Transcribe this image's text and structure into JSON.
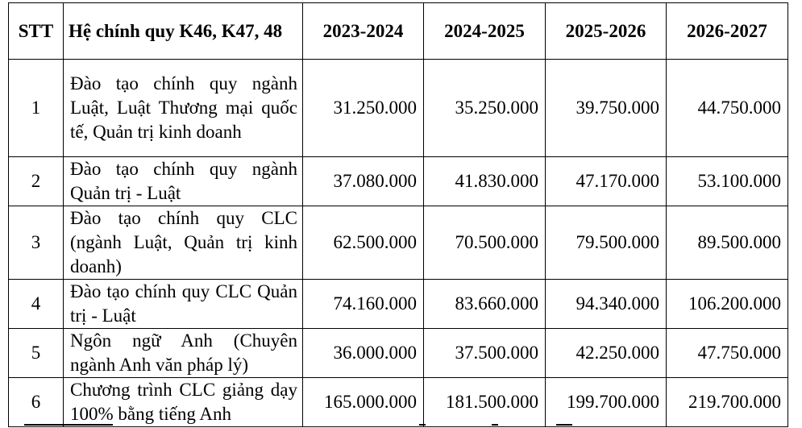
{
  "table": {
    "headers": {
      "stt": "STT",
      "program": "Hệ chính quy K46, K47, 48",
      "years": [
        "2023-2024",
        "2024-2025",
        "2025-2026",
        "2026-2027"
      ]
    },
    "rows": [
      {
        "stt": "1",
        "program": "Đào tạo chính quy ngành Luật, Luật Thương mại quốc tế, Quản trị kinh doanh",
        "fees": [
          "31.250.000",
          "35.250.000",
          "39.750.000",
          "44.750.000"
        ]
      },
      {
        "stt": "2",
        "program": "Đào tạo chính quy ngành Quản trị - Luật",
        "fees": [
          "37.080.000",
          "41.830.000",
          "47.170.000",
          "53.100.000"
        ]
      },
      {
        "stt": "3",
        "program": "Đào tạo chính quy CLC (ngành Luật, Quản trị kinh doanh)",
        "fees": [
          "62.500.000",
          "70.500.000",
          "79.500.000",
          "89.500.000"
        ]
      },
      {
        "stt": "4",
        "program": "Đào tạo chính quy CLC Quản trị - Luật",
        "fees": [
          "74.160.000",
          "83.660.000",
          "94.340.000",
          "106.200.000"
        ]
      },
      {
        "stt": "5",
        "program": "Ngôn ngữ Anh (Chuyên ngành Anh văn pháp lý)",
        "fees": [
          "36.000.000",
          "37.500.000",
          "42.250.000",
          "47.750.000"
        ]
      },
      {
        "stt": "6",
        "program": "Chương trình CLC giảng dạy 100% bằng tiếng Anh",
        "fees": [
          "165.000.000",
          "181.500.000",
          "199.700.000",
          "219.700.000"
        ]
      }
    ]
  }
}
